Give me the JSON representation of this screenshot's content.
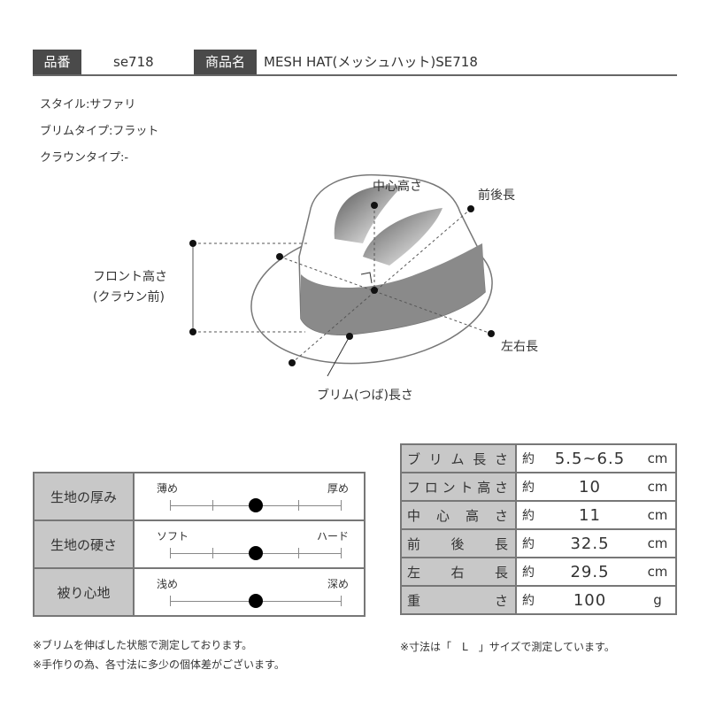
{
  "header": {
    "code_label": "品番",
    "code": "se718",
    "name_label": "商品名",
    "name": "MESH HAT(メッシュハット)SE718"
  },
  "specs": [
    "スタイル:サファリ",
    "ブリムタイプ:フラット",
    "クラウンタイプ:-"
  ],
  "diagram": {
    "center_height": "中心高さ",
    "front_back": "前後長",
    "front_height_1": "フロント高さ",
    "front_height_2": "(クラウン前)",
    "left_right": "左右長",
    "brim": "ブリム(つば)長さ"
  },
  "scales": [
    {
      "label": "生地の厚み",
      "min": "薄め",
      "max": "厚め",
      "level": 0.5,
      "ticks": 5
    },
    {
      "label": "生地の硬さ",
      "min": "ソフト",
      "max": "ハード",
      "level": 0.5,
      "ticks": 5
    },
    {
      "label": "被り心地",
      "min": "浅め",
      "max": "深め",
      "level": 0.5,
      "ticks": 2
    }
  ],
  "measurements": [
    {
      "label": "ブリム長さ",
      "approx": "約",
      "value": "5.5~6.5",
      "unit": "cm"
    },
    {
      "label": "フロント高さ",
      "approx": "約",
      "value": "10",
      "unit": "cm"
    },
    {
      "label": "中心高さ",
      "approx": "約",
      "value": "11",
      "unit": "cm"
    },
    {
      "label": "前後長",
      "approx": "約",
      "value": "32.5",
      "unit": "cm"
    },
    {
      "label": "左右長",
      "approx": "約",
      "value": "29.5",
      "unit": "cm"
    },
    {
      "label": "重さ",
      "approx": "約",
      "value": "100",
      "unit": "g"
    }
  ],
  "notes": {
    "left": [
      "※ブリムを伸ばした状態で測定しております。",
      "※手作りの為、各寸法に多少の個体差がございます。"
    ],
    "right": "※寸法は「　L　」サイズで測定しています。"
  }
}
